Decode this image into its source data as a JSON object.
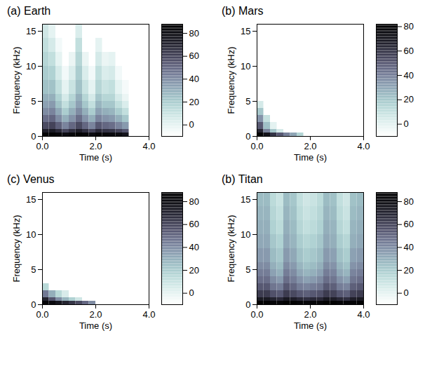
{
  "chart_data": [
    {
      "type": "heatmap",
      "title": "(a) Earth",
      "x_label": "Time (s)",
      "y_label": "Frequency (kHz)",
      "xlim": [
        0,
        4
      ],
      "xticks": [
        0,
        2,
        4
      ],
      "ylim": [
        0,
        16
      ],
      "yticks": [
        0,
        5,
        10,
        15
      ],
      "x_edges": [
        0,
        0.25,
        0.5,
        0.75,
        1,
        1.25,
        1.5,
        1.75,
        2,
        2.25,
        2.5,
        2.75,
        3,
        3.25,
        3.5,
        3.75,
        4
      ],
      "y_edges": [
        0,
        0.5,
        1,
        2,
        3,
        4,
        5,
        6,
        8,
        10,
        12,
        14,
        16
      ],
      "z": [
        [
          85,
          86,
          84,
          80,
          83,
          86,
          84,
          80,
          84,
          83,
          82,
          80,
          76,
          null,
          null,
          null
        ],
        [
          72,
          74,
          68,
          60,
          66,
          72,
          66,
          60,
          68,
          65,
          64,
          60,
          55,
          null,
          null,
          null
        ],
        [
          58,
          60,
          52,
          42,
          50,
          58,
          50,
          42,
          54,
          50,
          48,
          42,
          36,
          null,
          null,
          null
        ],
        [
          48,
          50,
          40,
          30,
          38,
          48,
          38,
          30,
          42,
          38,
          36,
          30,
          22,
          null,
          null,
          null
        ],
        [
          40,
          42,
          32,
          20,
          30,
          40,
          30,
          20,
          34,
          30,
          28,
          20,
          12,
          null,
          null,
          null
        ],
        [
          34,
          36,
          24,
          12,
          22,
          34,
          22,
          12,
          28,
          22,
          22,
          12,
          4,
          null,
          null,
          null
        ],
        [
          30,
          30,
          18,
          6,
          16,
          30,
          16,
          6,
          22,
          16,
          16,
          6,
          -2,
          null,
          null,
          null
        ],
        [
          24,
          24,
          12,
          0,
          10,
          24,
          10,
          0,
          16,
          10,
          12,
          0,
          -6,
          null,
          null,
          null
        ],
        [
          20,
          18,
          6,
          -5,
          4,
          20,
          4,
          -5,
          12,
          4,
          6,
          -5,
          null,
          null,
          null,
          null
        ],
        [
          16,
          12,
          0,
          null,
          -2,
          16,
          -2,
          null,
          6,
          -2,
          0,
          null,
          null,
          null,
          null,
          null
        ],
        [
          12,
          6,
          -5,
          null,
          null,
          12,
          null,
          null,
          0,
          null,
          null,
          null,
          null,
          null,
          null,
          null
        ],
        [
          8,
          0,
          null,
          null,
          null,
          4,
          null,
          null,
          null,
          null,
          null,
          null,
          null,
          null,
          null,
          null
        ]
      ],
      "colorbar_range": [
        -10,
        88
      ],
      "colorbar_ticks": [
        0,
        20,
        40,
        60,
        80
      ]
    },
    {
      "type": "heatmap",
      "title": "(b) Mars",
      "x_label": "Time (s)",
      "y_label": "Frequency (kHz)",
      "xlim": [
        0,
        4
      ],
      "xticks": [
        0,
        2,
        4
      ],
      "ylim": [
        0,
        16
      ],
      "yticks": [
        0,
        5,
        10,
        15
      ],
      "x_edges": [
        0,
        0.25,
        0.5,
        0.75,
        1,
        1.25,
        1.5,
        1.75,
        2,
        2.25,
        2.5,
        2.75,
        3,
        3.25,
        3.5,
        3.75,
        4
      ],
      "y_edges": [
        0,
        0.5,
        1,
        2,
        3,
        4,
        5,
        6,
        8,
        10,
        12,
        14,
        16
      ],
      "z": [
        [
          80,
          72,
          60,
          50,
          40,
          30,
          15,
          null,
          null,
          null,
          null,
          null,
          null,
          null,
          null,
          null
        ],
        [
          65,
          40,
          20,
          5,
          null,
          null,
          null,
          null,
          null,
          null,
          null,
          null,
          null,
          null,
          null,
          null
        ],
        [
          50,
          22,
          0,
          null,
          null,
          null,
          null,
          null,
          null,
          null,
          null,
          null,
          null,
          null,
          null,
          null
        ],
        [
          35,
          10,
          null,
          null,
          null,
          null,
          null,
          null,
          null,
          null,
          null,
          null,
          null,
          null,
          null,
          null
        ],
        [
          20,
          null,
          null,
          null,
          null,
          null,
          null,
          null,
          null,
          null,
          null,
          null,
          null,
          null,
          null,
          null
        ],
        [
          5,
          null,
          null,
          null,
          null,
          null,
          null,
          null,
          null,
          null,
          null,
          null,
          null,
          null,
          null,
          null
        ],
        [
          null,
          null,
          null,
          null,
          null,
          null,
          null,
          null,
          null,
          null,
          null,
          null,
          null,
          null,
          null,
          null
        ],
        [
          null,
          null,
          null,
          null,
          null,
          null,
          null,
          null,
          null,
          null,
          null,
          null,
          null,
          null,
          null,
          null
        ],
        [
          null,
          null,
          null,
          null,
          null,
          null,
          null,
          null,
          null,
          null,
          null,
          null,
          null,
          null,
          null,
          null
        ],
        [
          null,
          null,
          null,
          null,
          null,
          null,
          null,
          null,
          null,
          null,
          null,
          null,
          null,
          null,
          null,
          null
        ],
        [
          null,
          null,
          null,
          null,
          null,
          null,
          null,
          null,
          null,
          null,
          null,
          null,
          null,
          null,
          null,
          null
        ],
        [
          null,
          null,
          null,
          null,
          null,
          null,
          null,
          null,
          null,
          null,
          null,
          null,
          null,
          null,
          null,
          null
        ]
      ],
      "colorbar_range": [
        -10,
        82
      ],
      "colorbar_ticks": [
        0,
        20,
        40,
        60,
        80
      ]
    },
    {
      "type": "heatmap",
      "title": "(c) Venus",
      "x_label": "Time (s)",
      "y_label": "Frequency (kHz)",
      "xlim": [
        0,
        4
      ],
      "xticks": [
        0,
        2,
        4
      ],
      "ylim": [
        0,
        16
      ],
      "yticks": [
        0,
        5,
        10,
        15
      ],
      "x_edges": [
        0,
        0.25,
        0.5,
        0.75,
        1,
        1.25,
        1.5,
        1.75,
        2,
        2.25,
        2.5,
        2.75,
        3,
        3.25,
        3.5,
        3.75,
        4
      ],
      "y_edges": [
        0,
        0.5,
        1,
        2,
        3,
        4,
        5,
        6,
        8,
        10,
        12,
        14,
        16
      ],
      "z": [
        [
          84,
          82,
          76,
          70,
          64,
          58,
          50,
          40,
          null,
          null,
          null,
          null,
          null,
          null,
          null,
          null
        ],
        [
          70,
          55,
          40,
          28,
          18,
          8,
          null,
          null,
          null,
          null,
          null,
          null,
          null,
          null,
          null,
          null
        ],
        [
          45,
          30,
          15,
          5,
          null,
          null,
          null,
          null,
          null,
          null,
          null,
          null,
          null,
          null,
          null,
          null
        ],
        [
          15,
          null,
          null,
          null,
          null,
          null,
          null,
          null,
          null,
          null,
          null,
          null,
          null,
          null,
          null,
          null
        ],
        [
          null,
          null,
          null,
          null,
          null,
          null,
          null,
          null,
          null,
          null,
          null,
          null,
          null,
          null,
          null,
          null
        ],
        [
          null,
          null,
          null,
          null,
          null,
          null,
          null,
          null,
          null,
          null,
          null,
          null,
          null,
          null,
          null,
          null
        ],
        [
          null,
          null,
          null,
          null,
          null,
          null,
          null,
          null,
          null,
          null,
          null,
          null,
          null,
          null,
          null,
          null
        ],
        [
          null,
          null,
          null,
          null,
          null,
          null,
          null,
          null,
          null,
          null,
          null,
          null,
          null,
          null,
          null,
          null
        ],
        [
          null,
          null,
          null,
          null,
          null,
          null,
          null,
          null,
          null,
          null,
          null,
          null,
          null,
          null,
          null,
          null
        ],
        [
          null,
          null,
          null,
          null,
          null,
          null,
          null,
          null,
          null,
          null,
          null,
          null,
          null,
          null,
          null,
          null
        ],
        [
          null,
          null,
          null,
          null,
          null,
          null,
          null,
          null,
          null,
          null,
          null,
          null,
          null,
          null,
          null,
          null
        ],
        [
          null,
          null,
          null,
          null,
          null,
          null,
          null,
          null,
          null,
          null,
          null,
          null,
          null,
          null,
          null,
          null
        ]
      ],
      "colorbar_range": [
        -10,
        88
      ],
      "colorbar_ticks": [
        0,
        20,
        40,
        60,
        80
      ]
    },
    {
      "type": "heatmap",
      "title": "(b) Titan",
      "x_label": "Time (s)",
      "y_label": "Frequency (kHz)",
      "xlim": [
        0,
        4
      ],
      "xticks": [
        0,
        2,
        4
      ],
      "ylim": [
        0,
        16
      ],
      "yticks": [
        0,
        5,
        10,
        15
      ],
      "x_edges": [
        0,
        0.25,
        0.5,
        0.75,
        1,
        1.25,
        1.5,
        1.75,
        2,
        2.25,
        2.5,
        2.75,
        3,
        3.25,
        3.5,
        3.75,
        4
      ],
      "y_edges": [
        0,
        0.5,
        1,
        2,
        3,
        4,
        5,
        6,
        8,
        10,
        12,
        14,
        16
      ],
      "z": [
        [
          86,
          86,
          84,
          84,
          86,
          86,
          84,
          83,
          84,
          84,
          86,
          86,
          84,
          84,
          85,
          86
        ],
        [
          74,
          74,
          70,
          68,
          74,
          72,
          68,
          66,
          68,
          68,
          74,
          72,
          68,
          66,
          72,
          74
        ],
        [
          62,
          62,
          56,
          54,
          62,
          58,
          54,
          52,
          54,
          56,
          62,
          60,
          54,
          52,
          60,
          62
        ],
        [
          54,
          54,
          46,
          44,
          54,
          50,
          44,
          42,
          44,
          46,
          54,
          52,
          44,
          42,
          52,
          54
        ],
        [
          48,
          48,
          40,
          36,
          48,
          44,
          38,
          34,
          36,
          40,
          48,
          46,
          38,
          34,
          46,
          48
        ],
        [
          44,
          44,
          34,
          30,
          44,
          40,
          32,
          28,
          30,
          34,
          44,
          42,
          32,
          28,
          42,
          44
        ],
        [
          40,
          40,
          30,
          26,
          40,
          36,
          28,
          24,
          26,
          30,
          40,
          38,
          28,
          24,
          38,
          40
        ],
        [
          36,
          36,
          26,
          22,
          36,
          32,
          24,
          20,
          22,
          26,
          36,
          34,
          24,
          20,
          34,
          36
        ],
        [
          32,
          32,
          22,
          18,
          32,
          28,
          20,
          16,
          18,
          22,
          32,
          30,
          20,
          16,
          30,
          32
        ],
        [
          30,
          30,
          18,
          14,
          30,
          26,
          16,
          12,
          14,
          18,
          30,
          28,
          16,
          12,
          28,
          30
        ],
        [
          28,
          28,
          16,
          12,
          28,
          24,
          14,
          10,
          12,
          16,
          28,
          26,
          14,
          10,
          26,
          28
        ],
        [
          26,
          26,
          14,
          10,
          26,
          22,
          12,
          8,
          10,
          14,
          26,
          24,
          12,
          8,
          24,
          26
        ]
      ],
      "colorbar_range": [
        -10,
        88
      ],
      "colorbar_ticks": [
        0,
        20,
        40,
        60,
        80
      ]
    }
  ]
}
